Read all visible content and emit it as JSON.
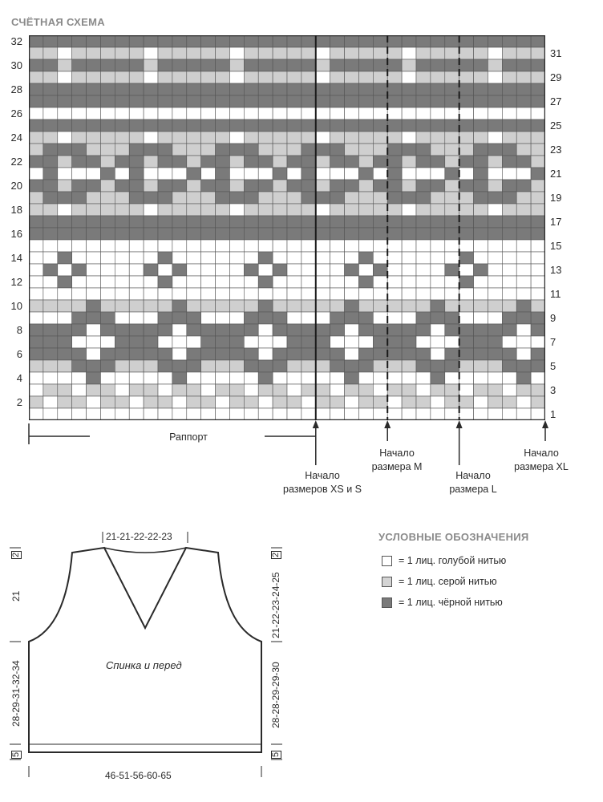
{
  "chart": {
    "title": "СЧЁТНАЯ СХЕМА",
    "cols": 36,
    "rows": 32,
    "left_row_numbers": [
      "2",
      "4",
      "6",
      "8",
      "10",
      "12",
      "14",
      "16",
      "18",
      "20",
      "22",
      "24",
      "26",
      "28",
      "30",
      "32"
    ],
    "right_row_numbers": [
      "1",
      "3",
      "5",
      "7",
      "9",
      "11",
      "13",
      "15",
      "17",
      "19",
      "21",
      "23",
      "25",
      "27",
      "29",
      "31"
    ],
    "colors": {
      "blue": "#ffffff",
      "grey": "#cfcfcf",
      "black": "#7a7a7a",
      "grid": "#555555"
    },
    "pattern_rows_top_to_bottom": [
      "BBBBBBBBBBBBBBBBBBBBBBBBBBBBBBBBBBBB",
      "GGWGGGGGWGGGGGWGGGGGWGGGGGWGGGGGWGGG",
      "BBGBBBBBGBBBBBGBBBBBGBBBBBGBBBBBGBBB",
      "GGWGGGGGWGGGGGWGGGGGWGGGGGWGGGGGWGGG",
      "BBBBBBBBBBBBBBBBBBBBBBBBBBBBBBBBBBBB",
      "BBBBBBBBBBBBBBBBBBBBBBBBBBBBBBBBBBBB",
      "WWWWWWWWWWWWWWWWWWWWWWWWWWWWWWWWWWWW",
      "BBBBBBBBBBBBBBBBBBBBBBBBBBBBBBBBBBBB",
      "GGWGGGGGWGGGGGWGGGGGWGGGGGWGGGGGWGGG",
      "GBBBGGGBBBGGGBBBGGGBBBGGGBBBGGGBBBGG",
      "BBGBBGBBGBBGBBGBBGBBGBBGBBGBBGBBGBBG",
      "WBWWWBWBWWWBWBWWWBWBWWWBWBWWWBWBWWWB",
      "BBGBBGBBGBBGBBGBBGBBGBBGBBGBBGBBGBBG",
      "GBBBGGGBBBGGGBBBGGGBBBGGGBBBGGGBBBGG",
      "GGWGGGGGWGGGGGWGGGGGWGGGGGWGGGGGWGGG",
      "BBBBBBBBBBBBBBBBBBBBBBBBBBBBBBBBBBBB",
      "BBBBBBBBBBBBBBBBBBBBBBBBBBBBBBBBBBBB",
      "WWWWWWWWWWWWWWWWWWWWWWWWWWWWWWWWWWWW",
      "WWBWWWWWWBWWWWWWBWWWWWWBWWWWWWBWWWWW",
      "WBWBWWWWBWBWWWWBWBWWWWBWBWWWWBWBWWWW",
      "WWBWWWWWWBWWWWWWBWWWWWWBWWWWWWBWWWWW",
      "WWWWWWWWWWWWWWWWWWWWWWWWWWWWWWWWWWWW",
      "GGGGBGGGGGBGGGGGBGGGGGBGGGGGBGGGGGBG",
      "WWWBBBWWWBBBWWWBBBWWWBBBWWWBBBWWWBBB",
      "BBBBWBBBBBWBBBBBWBBBBBWBBBBBWBBBBBWB",
      "BBBWWWBBBWWWBBBWWWBBBWWWBBBWWWBBBWWW",
      "BBBBWBBBBBWBBBBBWBBBBBWBBBBBWBBBBBWB",
      "GGGBBBGGGBBBGGGBBBGGGBBBGGGBBBGGGBBB",
      "WWWWBWWWWWBWWWWWBWWWWWBWWWWWBWWWWWBW",
      "WGGWGGWGGWGGWGGWGGWGGWGGWGGWGGWGGWGG",
      "GWGGWGGWGGWGGWGGWGGWGGWGGWGGWGGWGGWG",
      "WWWWWWWWWWWWWWWWWWWWWWWWWWWWWWWWWWWW"
    ],
    "rapport_label": "Раппорт",
    "size_markers": [
      {
        "label_line1": "Начало",
        "label_line2": "размеров XS и S"
      },
      {
        "label_line1": "Начало",
        "label_line2": "размера M"
      },
      {
        "label_line1": "Начало",
        "label_line2": "размера L"
      },
      {
        "label_line1": "Начало",
        "label_line2": "размера XL"
      }
    ]
  },
  "legend": {
    "title": "УСЛОВНЫЕ ОБОЗНАЧЕНИЯ",
    "items": [
      {
        "text": "= 1 лиц. голубой нитью",
        "swatch": "#ffffff"
      },
      {
        "text": "= 1 лиц. серой нитью",
        "swatch": "#d4d4d4"
      },
      {
        "text": "= 1 лиц. чёрной нитью",
        "swatch": "#7a7a7a"
      }
    ]
  },
  "schematic": {
    "piece_label": "Спинка и перед",
    "neck_width": "21-21-22-22-23",
    "bottom_width": "46-51-56-60-65",
    "left_top_small": "2",
    "left_armhole": "21",
    "left_body": "28-29-31-32-34",
    "left_hem": "5",
    "right_top_small": "2",
    "right_armhole": "21-22-23-24-25",
    "right_body": "28-28-29-29-30",
    "right_hem": "5"
  }
}
